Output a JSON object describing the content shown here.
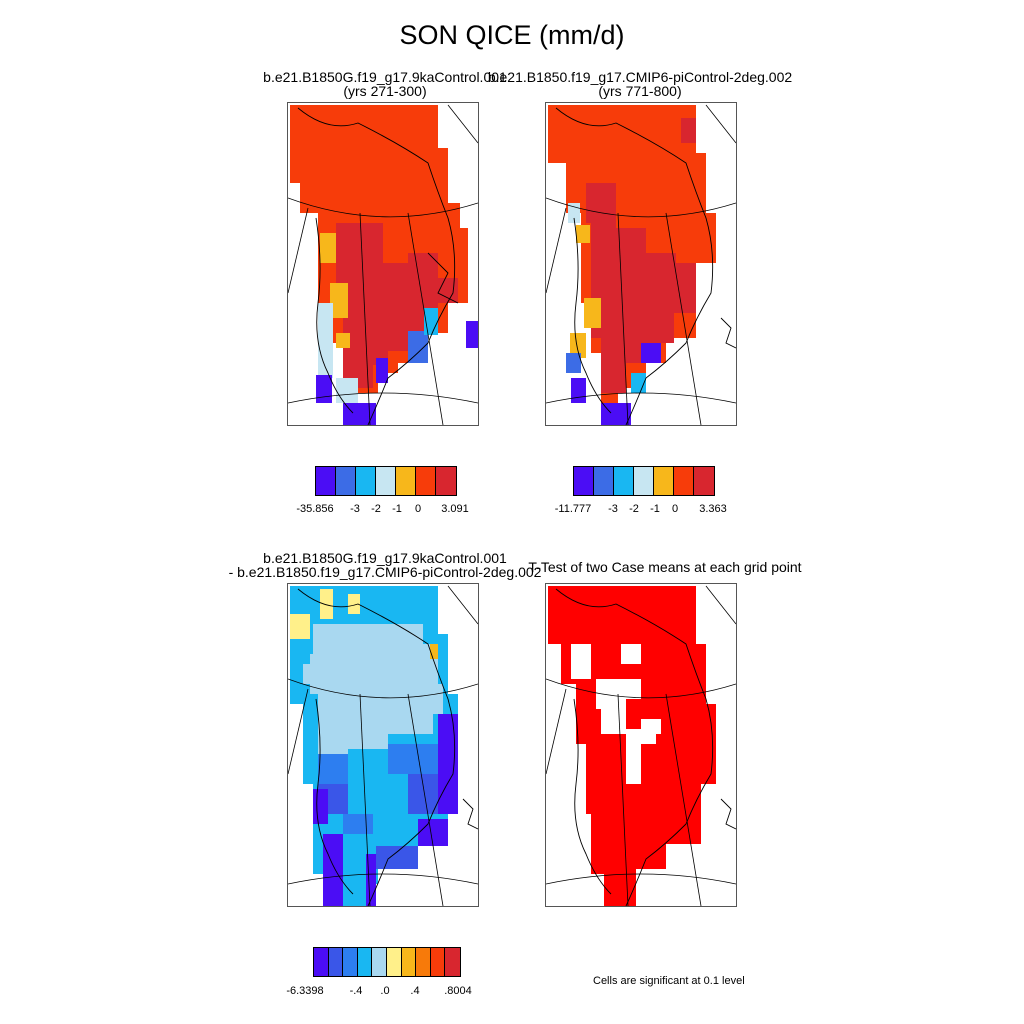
{
  "title": "SON QICE (mm/d)",
  "panels": [
    {
      "title_line1": "b.e21.B1850G.f19_g17.9kaControl.001",
      "title_line2": "(yrs 271-300)"
    },
    {
      "title_line1": "b.e21.B1850.f19_g17.CMIP6-piControl-2deg.002",
      "title_line2": "(yrs 771-800)"
    },
    {
      "title_line1": "b.e21.B1850G.f19_g17.9kaControl.001",
      "title_line2": "- b.e21.B1850.f19_g17.CMIP6-piControl-2deg.002"
    },
    {
      "title_line1": "T-Test of two Case means at each grid point"
    }
  ],
  "colorbars": [
    {
      "colors": [
        "#4b0df5",
        "#3c6ce6",
        "#19b7f2",
        "#c7e6f2",
        "#f7b71b",
        "#f73c0a",
        "#d8262f"
      ],
      "labels": [
        "-35.856",
        "-3",
        "-2",
        "-1",
        "0",
        "3.091"
      ]
    },
    {
      "colors": [
        "#4b0df5",
        "#3c6ce6",
        "#19b7f2",
        "#c7e6f2",
        "#f7b71b",
        "#f73c0a",
        "#d8262f"
      ],
      "labels": [
        "-11.777",
        "-3",
        "-2",
        "-1",
        "0",
        "3.363"
      ]
    },
    {
      "colors": [
        "#4b0df5",
        "#3a56e8",
        "#2d7ef0",
        "#19b7f2",
        "#a9d8f0",
        "#fff08a",
        "#f7b71b",
        "#f77a0a",
        "#f73c0a",
        "#d8262f"
      ],
      "labels": [
        "-6.3398",
        "-.4",
        ".0",
        ".4",
        ".8004"
      ]
    }
  ],
  "significance_note": "Cells are significant at 0.1 level",
  "significance_color": "#ff0000"
}
